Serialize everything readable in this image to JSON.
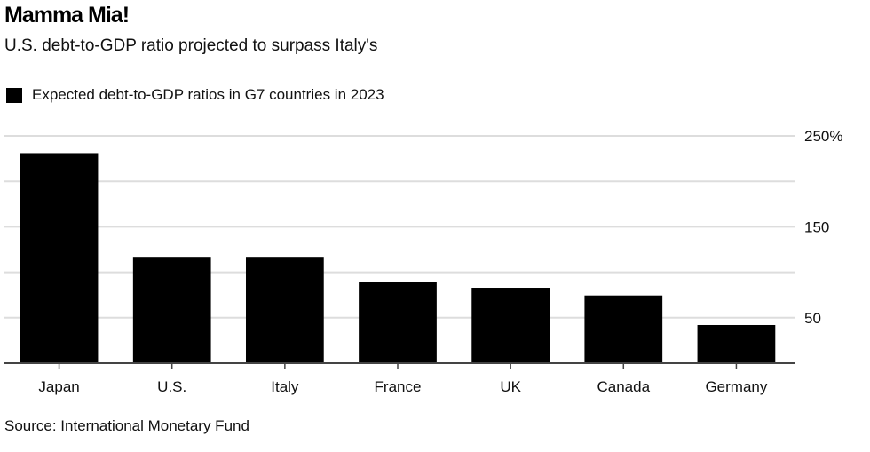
{
  "title": "Mamma Mia!",
  "subtitle": "U.S. debt-to-GDP ratio projected to surpass Italy's",
  "legend": {
    "label": "Expected debt-to-GDP ratios in G7 countries in 2023",
    "color": "#000000"
  },
  "source": "Source: International Monetary Fund",
  "colors": {
    "bar": "#000000",
    "grid": "#dddddd",
    "axis": "#444444"
  },
  "chart_data": {
    "type": "bar",
    "title": "Mamma Mia!",
    "subtitle": "U.S. debt-to-GDP ratio projected to surpass Italy's",
    "xlabel": "",
    "ylabel": "",
    "categories": [
      "Japan",
      "U.S.",
      "Italy",
      "France",
      "UK",
      "Canada",
      "Germany"
    ],
    "series": [
      {
        "name": "Expected debt-to-GDP ratios in G7 countries in 2023",
        "values": [
          231,
          117,
          117,
          89.5,
          83,
          74.5,
          42
        ]
      }
    ],
    "ylim": [
      0,
      250
    ],
    "yticks": [
      0,
      50,
      100,
      150,
      200,
      250
    ],
    "ytick_labels": [
      "",
      "50",
      "",
      "150",
      "",
      "250%"
    ],
    "y_axis_side": "right",
    "grid": true,
    "legend_position": "top-left"
  }
}
